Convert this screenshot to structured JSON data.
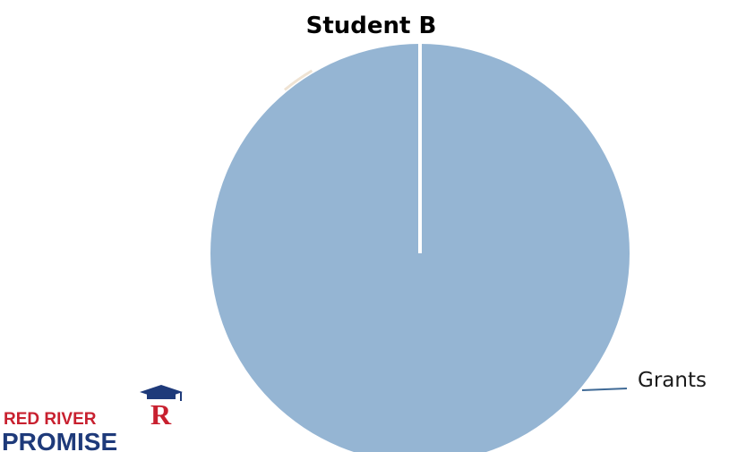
{
  "chart_data": {
    "type": "pie",
    "title": "Student B",
    "categories": [
      "Grants"
    ],
    "series": [
      {
        "values": [
          100
        ]
      }
    ],
    "slice_colors": [
      "#95b5d3"
    ],
    "labels": [
      "Grants"
    ]
  },
  "logo": {
    "line1": "RED RIVER",
    "line2": "PROMISE",
    "colors": {
      "red": "#c8202f",
      "blue": "#1e3a7a"
    },
    "emblem": "graduation-cap-R-emblem"
  }
}
